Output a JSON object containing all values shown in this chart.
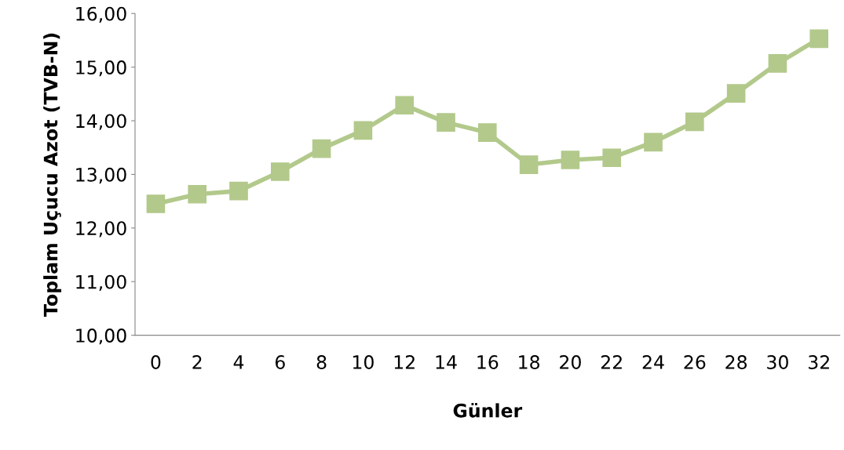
{
  "chart_data": {
    "type": "line",
    "xlabel": "Günler",
    "ylabel": "Toplam Uçucu Azot (TVB-N)",
    "categories": [
      "0",
      "2",
      "4",
      "6",
      "8",
      "10",
      "12",
      "14",
      "16",
      "18",
      "20",
      "22",
      "24",
      "26",
      "28",
      "30",
      "32"
    ],
    "series": [
      {
        "color": "#b2c98b",
        "values": [
          12.45,
          12.63,
          12.69,
          13.05,
          13.48,
          13.82,
          14.29,
          13.97,
          13.78,
          13.18,
          13.27,
          13.31,
          13.6,
          13.98,
          14.51,
          15.07,
          15.53
        ]
      }
    ],
    "ylim": [
      10,
      16
    ],
    "yticks": [
      {
        "value": 10,
        "label": "10,00"
      },
      {
        "value": 11,
        "label": "11,00"
      },
      {
        "value": 12,
        "label": "12,00"
      },
      {
        "value": 13,
        "label": "13,00"
      },
      {
        "value": 14,
        "label": "14,00"
      },
      {
        "value": 15,
        "label": "15,00"
      },
      {
        "value": 16,
        "label": "16,00"
      }
    ],
    "marker": "square",
    "line_style": "solid",
    "grid": false,
    "legend": false
  }
}
